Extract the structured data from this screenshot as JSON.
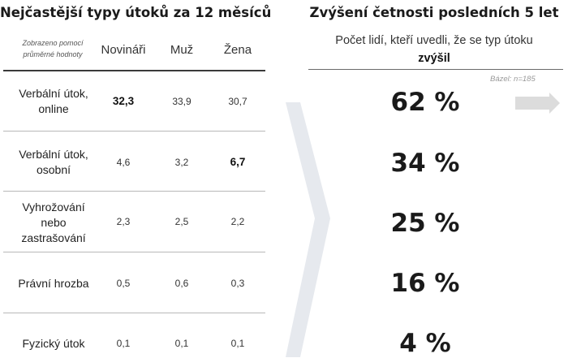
{
  "left": {
    "title": "Nejčastější typy útoků za 12 měsíců",
    "note_line1": "Zobrazeno pomocí",
    "note_line2": "průměrné hodnoty",
    "columns": [
      "Novináři",
      "Muž",
      "Žena"
    ],
    "rows": [
      {
        "label": [
          "Verbální útok,",
          "online"
        ],
        "values": [
          "32,3",
          "33,9",
          "30,7"
        ],
        "bold": [
          true,
          false,
          false
        ]
      },
      {
        "label": [
          "Verbální útok,",
          "osobní"
        ],
        "values": [
          "4,6",
          "3,2",
          "6,7"
        ],
        "bold": [
          false,
          false,
          true
        ]
      },
      {
        "label": [
          "Vyhrožování",
          "nebo",
          "zastrašování"
        ],
        "values": [
          "2,3",
          "2,5",
          "2,2"
        ],
        "bold": [
          false,
          false,
          false
        ]
      },
      {
        "label": [
          "Právní hrozba"
        ],
        "values": [
          "0,5",
          "0,6",
          "0,3"
        ],
        "bold": [
          false,
          false,
          false
        ]
      },
      {
        "label": [
          "Fyzický útok"
        ],
        "values": [
          "0,1",
          "0,1",
          "0,1"
        ],
        "bold": [
          false,
          false,
          false
        ]
      }
    ]
  },
  "right": {
    "title": "Zvýšení četnosti posledních 5 let",
    "subtitle_line1": "Počet lidí, kteří uvedli, že se typ útoku",
    "subtitle_line2": "zvýšil",
    "base_note": "Bázel: n=185",
    "percentages": [
      "62 %",
      "34 %",
      "25 %",
      "16 %",
      "4 %"
    ]
  },
  "colors": {
    "chevron": "#e6e9ee",
    "arrow": "#dcdcdc",
    "rule": "#b8b8b8",
    "rule_dark": "#3a3a3a"
  },
  "icons": {
    "separator": "chevron-right-shape",
    "continue": "arrow-right-icon"
  }
}
